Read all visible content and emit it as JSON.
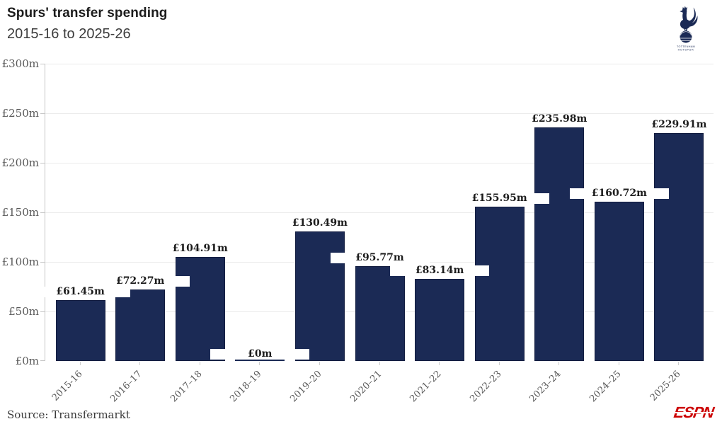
{
  "header": {
    "title": "Spurs' transfer spending",
    "subtitle": "2015-16 to 2025-26",
    "crest_line1": "TOTTENHAM",
    "crest_line2": "HOTSPUR"
  },
  "chart_data": {
    "type": "bar",
    "title": "Spurs' transfer spending",
    "subtitle": "2015-16 to 2025-26",
    "categories": [
      "2015-16",
      "2016–17",
      "2017–18",
      "2018–19",
      "2019–20",
      "2020–21",
      "2021–22",
      "2022–23",
      "2023–24",
      "2024–25",
      "2025-26"
    ],
    "values": [
      61.45,
      72.27,
      104.91,
      0,
      130.49,
      95.77,
      83.14,
      155.95,
      235.98,
      160.72,
      229.91
    ],
    "bar_labels": [
      "£61.45m",
      "£72.27m",
      "£104.91m",
      "£0m",
      "£130.49m",
      "£95.77m",
      "£83.14m",
      "£155.95m",
      "£235.98m",
      "£160.72m",
      "£229.91m"
    ],
    "ytick_labels": [
      "£0m",
      "£50m",
      "£100m",
      "£150m",
      "£200m",
      "£250m",
      "£300m"
    ],
    "ytick_values": [
      0,
      50,
      100,
      150,
      200,
      250,
      300
    ],
    "ylim": [
      0,
      300
    ],
    "xlabel": "",
    "ylabel": "",
    "grid": true,
    "legend": "none",
    "bar_color": "#1b2a55",
    "units": "£m (millions of pounds)"
  },
  "footer": {
    "source": "Source: Transfermarkt",
    "brand": "ESPN"
  },
  "colors": {
    "bar": "#1b2a55",
    "grid": "#ebebeb",
    "axis": "#c6c6c6",
    "accent_red": "#cc0000",
    "text_dark": "#1c1c1c",
    "text_gray": "#595959"
  }
}
